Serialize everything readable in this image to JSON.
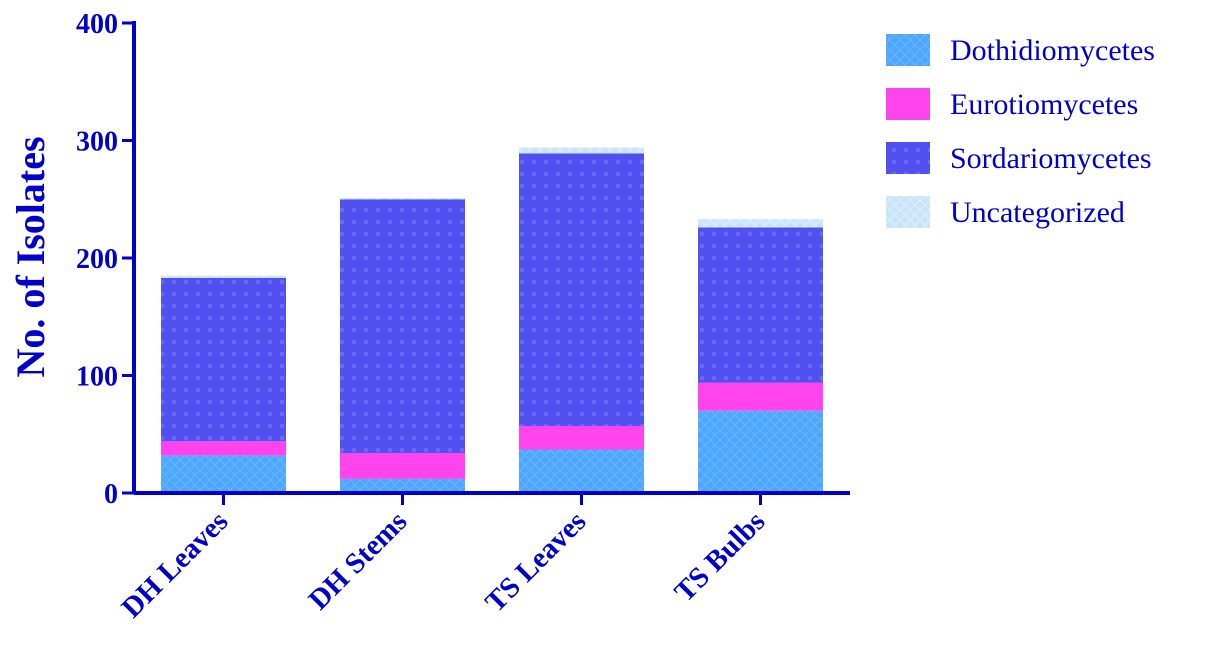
{
  "chart_data": {
    "type": "bar",
    "stacked": true,
    "categories": [
      "DH Leaves",
      "DH Stems",
      "TS Leaves",
      "TS Bulbs"
    ],
    "series": [
      {
        "name": "Dothidiomycetes",
        "values": [
          32,
          12,
          37,
          70
        ],
        "color": "#4da6ff",
        "pattern": "cross-hatch"
      },
      {
        "name": "Eurotiomycetes",
        "values": [
          12,
          22,
          20,
          24
        ],
        "color": "#ff44ee",
        "pattern": "solid"
      },
      {
        "name": "Sordariomycetes",
        "values": [
          139,
          216,
          232,
          132
        ],
        "color": "#5050f0",
        "pattern": "dotted"
      },
      {
        "name": "Uncategorized",
        "values": [
          2,
          1,
          5,
          7
        ],
        "color": "#c8e4fa",
        "pattern": "cross-hatch"
      }
    ],
    "title": "",
    "xlabel": "",
    "ylabel": "No. of Isolates",
    "ylim": [
      0,
      400
    ],
    "yticks": [
      0,
      100,
      200,
      300,
      400
    ],
    "grid": false,
    "legend_position": "top-right",
    "axis_color": "#0000cc"
  }
}
